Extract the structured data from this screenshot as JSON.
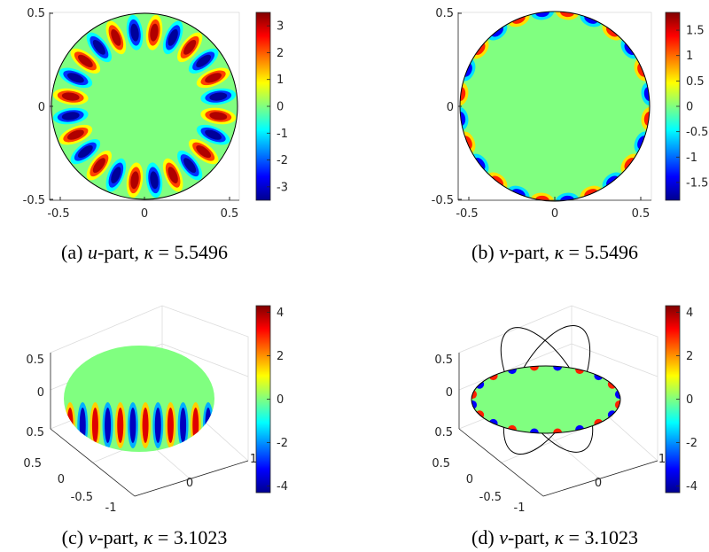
{
  "chart_data": [
    {
      "panel": "a",
      "type": "heatmap",
      "caption": {
        "label": "(a) ",
        "var": "u",
        "rest": "-part, ",
        "kappa_sym": "κ",
        "eq": " = 5.5496"
      },
      "kappa": 5.5496,
      "xlim": [
        -0.55,
        0.55
      ],
      "ylim": [
        -0.5,
        0.5
      ],
      "xticks": [
        "-0.5",
        "0",
        "0.5"
      ],
      "yticks": [
        "0.5",
        "0",
        "-0.5"
      ],
      "colorbar": {
        "min": -3.5,
        "max": 3.5,
        "ticks": [
          "3",
          "2",
          "1",
          "0",
          "-1",
          "-2",
          "-3"
        ]
      },
      "pattern": {
        "lobes": 24,
        "amplitude": 3.5
      }
    },
    {
      "panel": "b",
      "type": "heatmap",
      "caption": {
        "label": "(b) ",
        "var": "v",
        "rest": "-part, ",
        "kappa_sym": "κ",
        "eq": " = 5.5496"
      },
      "kappa": 5.5496,
      "xlim": [
        -0.55,
        0.55
      ],
      "ylim": [
        -0.5,
        0.5
      ],
      "xticks": [
        "-0.5",
        "0",
        "0.5"
      ],
      "yticks": [
        "0.5",
        "0",
        "-0.5"
      ],
      "colorbar": {
        "min": -1.85,
        "max": 1.85,
        "ticks": [
          "1.5",
          "1",
          "0.5",
          "0",
          "-0.5",
          "-1",
          "-1.5"
        ]
      },
      "pattern": {
        "lobes": 24,
        "amplitude": 1.8
      }
    },
    {
      "panel": "c",
      "type": "surface3d",
      "caption": {
        "label": "(c) ",
        "var": "v",
        "rest": "-part, ",
        "kappa_sym": "κ",
        "eq": " = 3.1023"
      },
      "kappa": 3.1023,
      "zticks": [
        "0.5",
        "0",
        "0.5"
      ],
      "yticks": [
        "0.5",
        "0",
        "-0.5"
      ],
      "xticks": [
        "-1",
        "0",
        "1"
      ],
      "colorbar": {
        "min": -4.3,
        "max": 4.3,
        "ticks": [
          "4",
          "2",
          "0",
          "-2",
          "-4"
        ]
      },
      "pattern": {
        "lobes": 12,
        "amplitude": 4
      }
    },
    {
      "panel": "d",
      "type": "surface3d",
      "caption": {
        "label": "(d) ",
        "var": "v",
        "rest": "-part, ",
        "kappa_sym": "κ",
        "eq": " = 3.1023"
      },
      "kappa": 3.1023,
      "zticks": [
        "0.5",
        "0",
        "0.5"
      ],
      "yticks": [
        "0.5",
        "0",
        "-0.5"
      ],
      "xticks": [
        "-1",
        "0",
        "1"
      ],
      "colorbar": {
        "min": -4.3,
        "max": 4.3,
        "ticks": [
          "4",
          "2",
          "0",
          "-2",
          "-4"
        ]
      },
      "pattern": {
        "lobes": 20,
        "amplitude": 4
      }
    }
  ]
}
